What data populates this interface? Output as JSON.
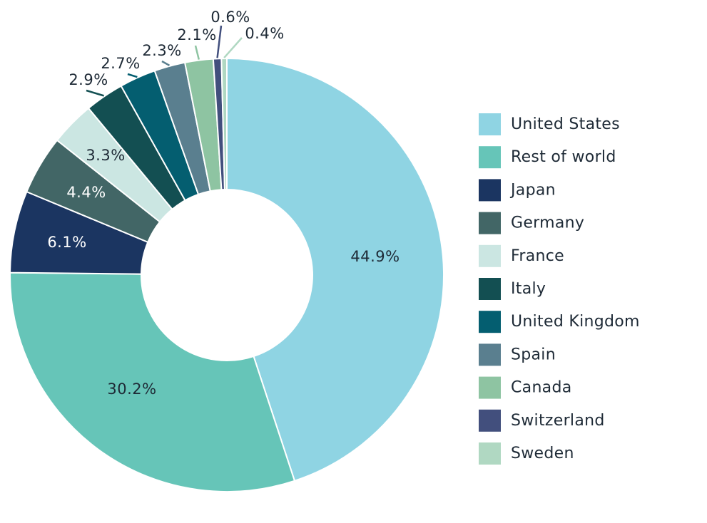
{
  "chart_data": {
    "type": "pie",
    "donut": true,
    "legend_position": "right",
    "slices": [
      {
        "label": "United States",
        "value": 44.9,
        "display": "44.9%",
        "color": "#8fd4e3",
        "label_color": "#1e2a36"
      },
      {
        "label": "Rest of world",
        "value": 30.2,
        "display": "30.2%",
        "color": "#66c5b8",
        "label_color": "#1e2a36"
      },
      {
        "label": "Japan",
        "value": 6.1,
        "display": "6.1%",
        "color": "#1b3561",
        "label_color": "#ffffff"
      },
      {
        "label": "Germany",
        "value": 4.4,
        "display": "4.4%",
        "color": "#426666",
        "label_color": "#ffffff"
      },
      {
        "label": "France",
        "value": 3.3,
        "display": "3.3%",
        "color": "#cbe6e2",
        "label_color": "#1e2a36"
      },
      {
        "label": "Italy",
        "value": 2.9,
        "display": "2.9%",
        "color": "#134f52",
        "label_color": "#1e2a36"
      },
      {
        "label": "United Kingdom",
        "value": 2.7,
        "display": "2.7%",
        "color": "#045e70",
        "label_color": "#1e2a36"
      },
      {
        "label": "Spain",
        "value": 2.3,
        "display": "2.3%",
        "color": "#5a7f8f",
        "label_color": "#1e2a36"
      },
      {
        "label": "Canada",
        "value": 2.1,
        "display": "2.1%",
        "color": "#8ec4a2",
        "label_color": "#1e2a36"
      },
      {
        "label": "Switzerland",
        "value": 0.6,
        "display": "0.6%",
        "color": "#424f7d",
        "label_color": "#1e2a36"
      },
      {
        "label": "Sweden",
        "value": 0.4,
        "display": "0.4%",
        "color": "#b0d8c2",
        "label_color": "#1e2a36"
      }
    ]
  }
}
